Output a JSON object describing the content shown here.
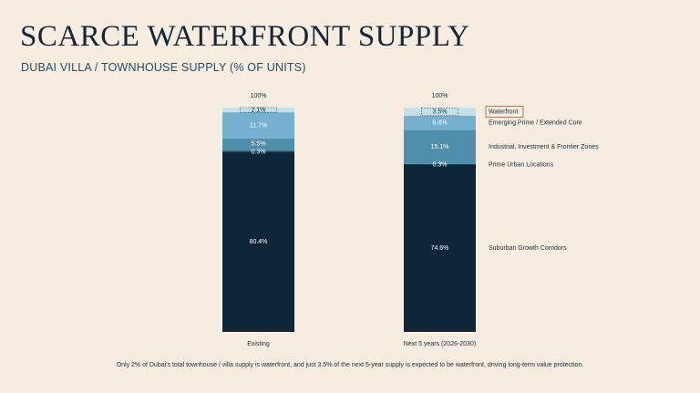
{
  "title": "SCARCE WATERFRONT SUPPLY",
  "subtitle": "DUBAI VILLA / TOWNHOUSE SUPPLY (% OF UNITS)",
  "footnote": "Only 2% of Dubai's total townhouse / villa supply is waterfront, and just 3.5% of the next 5-year supply is expected to be waterfront, driving long-term value protection.",
  "colors": {
    "Suburban Growth Corridors": "#0d2638",
    "Prime Urban Locations": "#1d5573",
    "Industrial, Investment & Frontier Zones": "#4f8fab",
    "Emerging Prime / Extended Core": "#75b1cf",
    "Waterfront": "#c4e1ea",
    "background": "#f6ecdf"
  },
  "chart_data": {
    "type": "bar",
    "stacked": true,
    "categories": [
      "Existing",
      "Next 5 years (2026-2030)"
    ],
    "totals": [
      "100%",
      "100%"
    ],
    "series": [
      {
        "name": "Suburban Growth Corridors",
        "values": [
          80.4,
          74.6
        ],
        "labels": [
          "80.4%",
          "74.6%"
        ]
      },
      {
        "name": "Prime Urban Locations",
        "values": [
          0.3,
          0.3
        ],
        "labels": [
          "0.3%",
          "0.3%"
        ]
      },
      {
        "name": "Industrial, Investment & Frontier Zones",
        "values": [
          5.5,
          15.1
        ],
        "labels": [
          "5.5%",
          "15.1%"
        ]
      },
      {
        "name": "Emerging Prime / Extended Core",
        "values": [
          11.7,
          6.4
        ],
        "labels": [
          "11.7%",
          "6.4%"
        ]
      },
      {
        "name": "Waterfront",
        "values": [
          2.1,
          3.5
        ],
        "labels": [
          "2.1%",
          "3.5%"
        ]
      }
    ],
    "ylim": [
      0,
      100
    ],
    "legend": "right"
  }
}
